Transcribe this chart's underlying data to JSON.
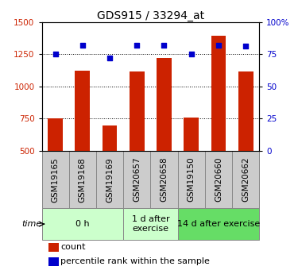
{
  "title": "GDS915 / 33294_at",
  "samples": [
    "GSM19165",
    "GSM19168",
    "GSM19169",
    "GSM20657",
    "GSM20658",
    "GSM19150",
    "GSM20660",
    "GSM20662"
  ],
  "counts": [
    755,
    1120,
    695,
    1115,
    1220,
    760,
    1390,
    1115
  ],
  "percentiles": [
    75,
    82,
    72,
    82,
    82,
    75,
    82,
    81
  ],
  "groups": [
    {
      "label": "0 h",
      "start": 0,
      "end": 2,
      "color": "#ccffcc"
    },
    {
      "label": "1 d after\nexercise",
      "start": 3,
      "end": 4,
      "color": "#ccffcc"
    },
    {
      "label": "14 d after exercise",
      "start": 5,
      "end": 7,
      "color": "#66dd66"
    }
  ],
  "ylim_left": [
    500,
    1500
  ],
  "ylim_right": [
    0,
    100
  ],
  "yticks_left": [
    500,
    750,
    1000,
    1250,
    1500
  ],
  "yticks_right": [
    0,
    25,
    50,
    75,
    100
  ],
  "bar_color": "#cc2200",
  "dot_color": "#0000cc",
  "bar_width": 0.55,
  "legend_count_label": "count",
  "legend_pct_label": "percentile rank within the sample",
  "bg_color": "#ffffff",
  "tick_label_color_left": "#cc2200",
  "tick_label_color_right": "#0000cc",
  "title_fontsize": 10,
  "tick_fontsize": 7.5,
  "label_fontsize": 8,
  "sample_box_color": "#cccccc",
  "sample_box_edge": "#888888"
}
